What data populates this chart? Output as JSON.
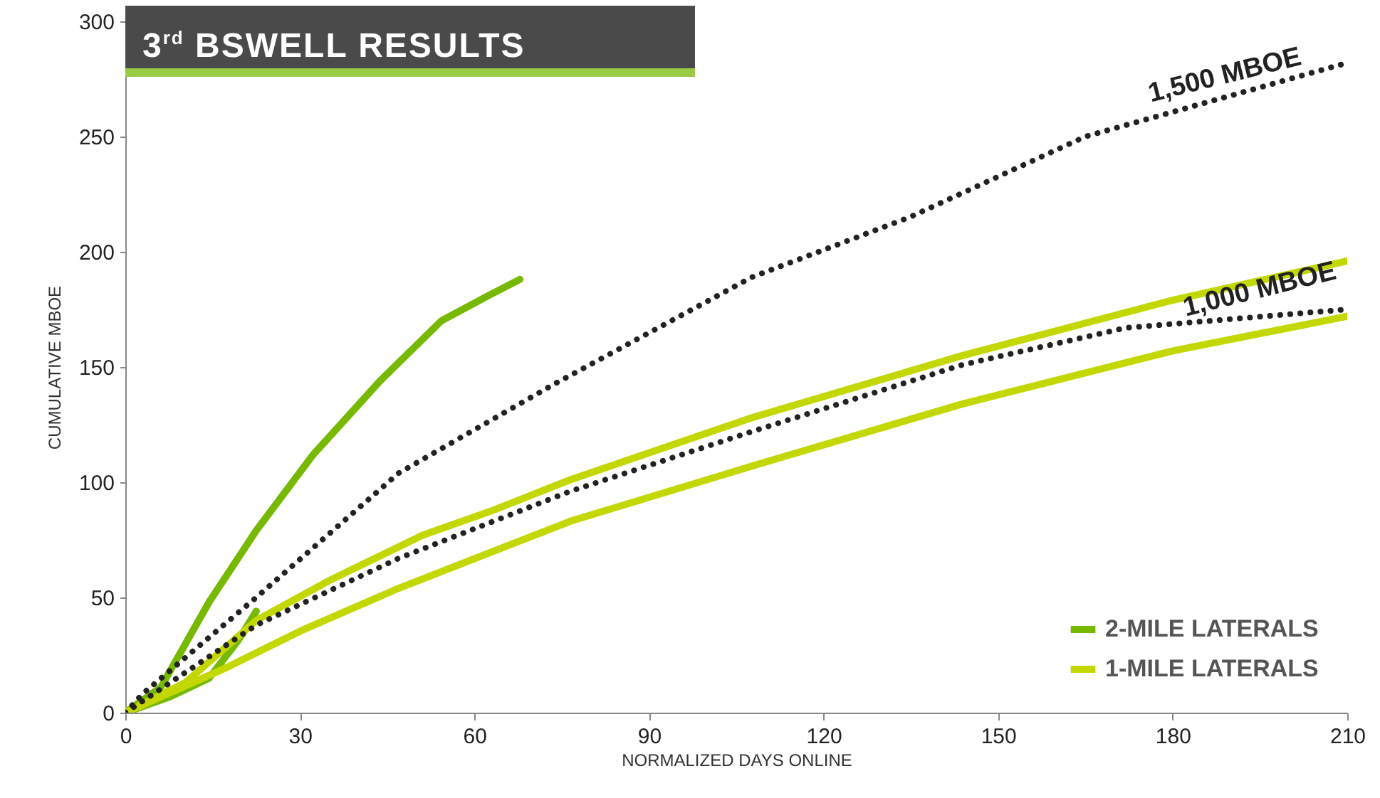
{
  "chart_data": {
    "type": "line",
    "title": "3$^{rd}$ BSWELL RESULTS",
    "xlabel": "NORMALIZED DAYS ONLINE",
    "ylabel": "CUMULATIVE MBOE",
    "xlim": [
      0,
      210
    ],
    "xticks": [
      0,
      30,
      60,
      90,
      120,
      150,
      180,
      210
    ],
    "ylim": [
      0,
      300
    ],
    "yticks": [
      0,
      50,
      100,
      150,
      200,
      250,
      300
    ],
    "grid": false,
    "legend": "bottom right",
    "series": [
      {
        "name": "2-MILE LATERALS",
        "color": "#77b800",
        "x": [
          0,
          6.1,
          14.4,
          22.5,
          32.3,
          43.8,
          54.3,
          62.4,
          67.8
        ],
        "values": [
          0,
          11,
          48,
          79,
          112,
          144,
          170,
          181,
          188
        ]
      },
      {
        "color": "#77b800",
        "x": [
          0,
          7.8,
          14.4,
          19.3,
          22.5
        ],
        "values": [
          0,
          7,
          15,
          31,
          44
        ]
      },
      {
        "name": "1-MILE LATERALS",
        "color": "#c3d800",
        "x": [
          0,
          10.3,
          22.5,
          34.8,
          51.1,
          63.4,
          76.4,
          107.7,
          143.9,
          180,
          210
        ],
        "values": [
          0,
          13,
          40,
          57,
          77,
          88,
          101,
          128,
          155,
          179,
          196
        ]
      },
      {
        "color": "#c3d800",
        "x": [
          0,
          16.9,
          30.6,
          47,
          76.4,
          107.7,
          143.9,
          180,
          210
        ],
        "values": [
          0,
          19,
          36,
          54,
          83,
          107,
          134,
          157,
          172
        ]
      },
      {
        "color": "#222222",
        "line_style": "dotted",
        "x": [
          0,
          22.5,
          47,
          76.4,
          107.7,
          143.9,
          172,
          210
        ],
        "values": [
          0,
          38,
          67,
          96,
          122,
          151,
          167,
          175
        ]
      },
      {
        "color": "#222222",
        "line_style": "dotted",
        "x": [
          0,
          2.9,
          22.5,
          47,
          74,
          107.7,
          134.8,
          165,
          210
        ],
        "values": [
          0,
          8,
          50,
          104,
          143,
          189,
          215,
          250,
          282
        ]
      }
    ],
    "annotations": [
      {
        "text": "1,500 MBOE",
        "x": 190,
        "y": 266
      },
      {
        "text": "1,000 MBOE",
        "x": 196,
        "y": 173
      }
    ]
  }
}
